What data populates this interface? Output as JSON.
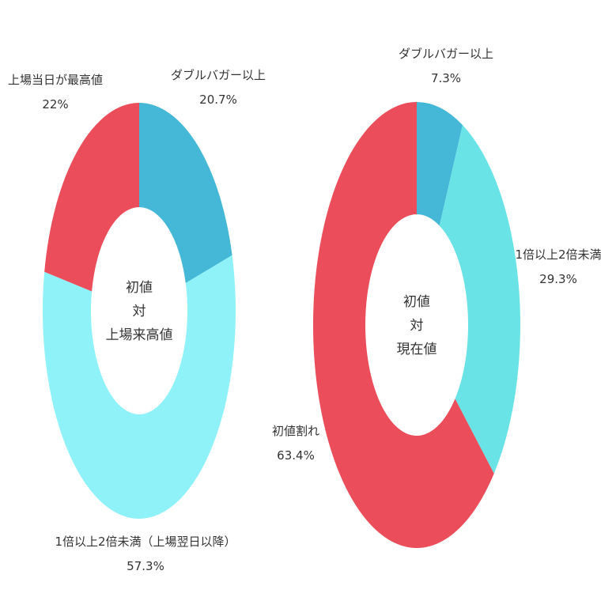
{
  "chart_data": [
    {
      "type": "pie",
      "donut": true,
      "center_lines": [
        "初値",
        "対",
        "上場来高値"
      ],
      "slices": [
        {
          "label": "ダブルバガー以上",
          "value": 20.7,
          "value_label": "20.7%",
          "color": "#44b8d6"
        },
        {
          "label": "1倍以上2倍未満（上場翌日以降）",
          "value": 57.3,
          "value_label": "57.3%",
          "color": "#8ef2f8"
        },
        {
          "label": "上場当日が最高値",
          "value": 22,
          "value_label": "22%",
          "color": "#eb4d5a"
        }
      ]
    },
    {
      "type": "pie",
      "donut": true,
      "center_lines": [
        "初値",
        "対",
        "現在値"
      ],
      "slices": [
        {
          "label": "ダブルバガー以上",
          "value": 7.3,
          "value_label": "7.3%",
          "color": "#44b8d6"
        },
        {
          "label": "1倍以上2倍未満",
          "value": 29.3,
          "value_label": "29.3%",
          "color": "#6ae3e6"
        },
        {
          "label": "初値割れ",
          "value": 63.4,
          "value_label": "63.4%",
          "color": "#eb4d5a"
        }
      ]
    }
  ]
}
